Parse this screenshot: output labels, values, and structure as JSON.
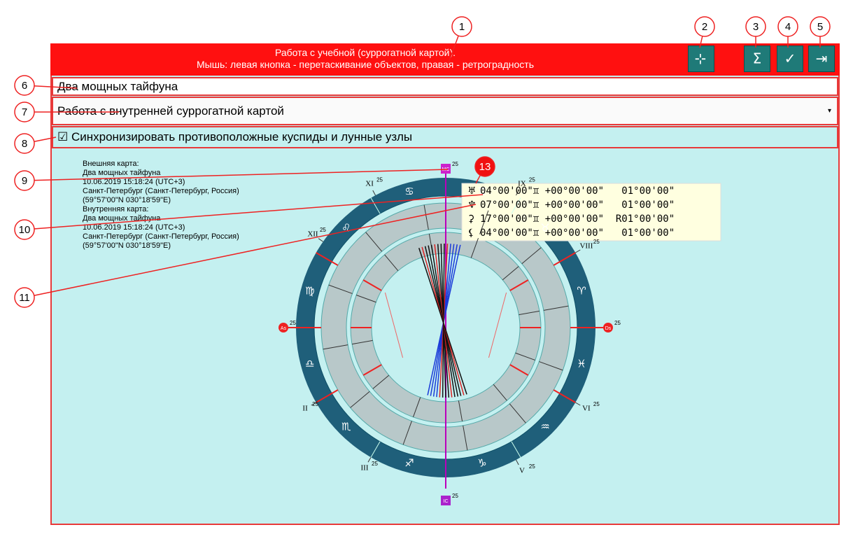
{
  "header": {
    "line1": "Работа с учебной (суррогатной картой).",
    "line2": "Мышь: левая кнопка - перетаскивание объектов, правая - ретроградность"
  },
  "chart_name": "Два мощных тайфуна",
  "dropdown": "Работа с внутренней суррогатной картой",
  "checkbox": "Синхронизировать противоположные куспиды и лунные узлы",
  "info": [
    "Внешняя карта:",
    "Два мощных тайфуна",
    "10.06.2019 15:18:24 (UTC+3)",
    "Санкт-Петербург (Санкт-Петербург, Россия)",
    "(59°57'00\"N 030°18'59\"E)",
    "Внутренняя карта:",
    "Два мощных тайфуна",
    "10.06.2019 15:18:24 (UTC+3)",
    "Санкт-Петербург (Санкт-Петербург, Россия)",
    "(59°57'00\"N 030°18'59\"E)"
  ],
  "zodiac": [
    "♈",
    "♉",
    "♊",
    "♋",
    "♌",
    "♍",
    "♎",
    "♏",
    "♐",
    "♑",
    "♒",
    "♓"
  ],
  "houses": [
    {
      "label": "VIII",
      "degree": "25"
    },
    {
      "label": "IX",
      "degree": "25"
    },
    {
      "label": "XI",
      "degree": "25"
    },
    {
      "label": "XII",
      "degree": "25"
    },
    {
      "label": "II",
      "degree": "25"
    },
    {
      "label": "III",
      "degree": "25"
    },
    {
      "label": "V",
      "degree": "25"
    },
    {
      "label": "VI",
      "degree": "25"
    }
  ],
  "angles": {
    "mc": "MC",
    "ic": "IC",
    "as": "As",
    "ds": "Ds",
    "degree": "25"
  },
  "tooltip": [
    {
      "symbol": "♅",
      "text": "04°00'00\"♊ +00°00'00\"   01°00'00\""
    },
    {
      "symbol": "♆",
      "text": "07°00'00\"♊ +00°00'00\"   01°00'00\""
    },
    {
      "symbol": "⚳",
      "text": "17°00'00\"♊ +00°00'00\"  R01°00'00\""
    },
    {
      "symbol": "⚸",
      "text": "04°00'00\"♊ +00°00'00\"   01°00'00\""
    }
  ],
  "callouts": [
    "1",
    "2",
    "3",
    "4",
    "5",
    "6",
    "7",
    "8",
    "9",
    "10",
    "11",
    "13"
  ]
}
